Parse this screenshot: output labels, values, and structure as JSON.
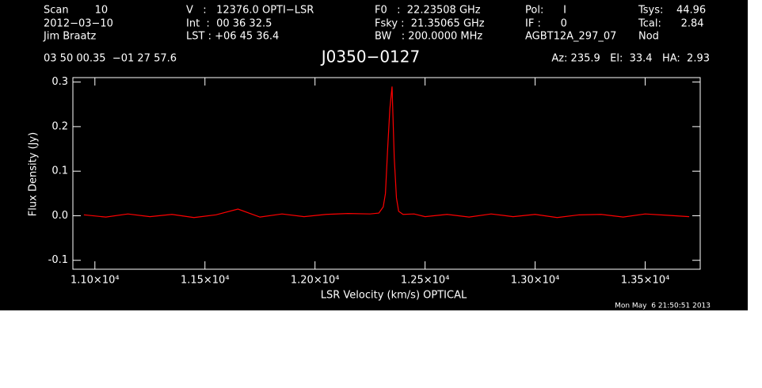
{
  "chart_data": {
    "type": "line",
    "title": "J0350−0127",
    "header": [
      [
        "Scan        10",
        "2012−03−10",
        "Jim Braatz"
      ],
      [
        "V   :   12376.0 OPTI−LSR",
        "Int  :  00 36 32.5",
        "LST : +06 45 36.4"
      ],
      [
        "F0   :  22.23508 GHz",
        "Fsky :  21.35065 GHz",
        "BW   : 200.0000 MHz"
      ],
      [
        "Pol:      I",
        "IF :      0",
        "AGBT12A_297_07"
      ],
      [
        "Tsys:    44.96",
        "Tcal:      2.84",
        "Nod"
      ]
    ],
    "coordinates": "03 50 00.35  −01 27 57.6",
    "pointing": "Az: 235.9   El:  33.4   HA:  2.93",
    "timestamp": "Mon May  6 21:50:51 2013",
    "x_label": "LSR Velocity (km/s) OPTICAL",
    "y_label": "Flux Density (Jy)",
    "xlim": [
      10900,
      13750
    ],
    "ylim": [
      -0.12,
      0.31
    ],
    "xticks": [
      {
        "value": 11000,
        "label": "1.10×10⁴"
      },
      {
        "value": 11500,
        "label": "1.15×10⁴"
      },
      {
        "value": 12000,
        "label": "1.20×10⁴"
      },
      {
        "value": 12500,
        "label": "1.25×10⁴"
      },
      {
        "value": 13000,
        "label": "1.30×10⁴"
      },
      {
        "value": 13500,
        "label": "1.35×10⁴"
      }
    ],
    "yticks": [
      -0.1,
      {
        "value": 0,
        "label": "0.0"
      },
      0.1,
      0.2,
      0.3
    ],
    "x": [
      10950,
      11050,
      11150,
      11250,
      11350,
      11450,
      11550,
      11650,
      11750,
      11850,
      11950,
      12050,
      12150,
      12250,
      12290,
      12310,
      12320,
      12330,
      12340,
      12350,
      12360,
      12370,
      12380,
      12400,
      12450,
      12500,
      12600,
      12700,
      12800,
      12900,
      13000,
      13100,
      13200,
      13300,
      13400,
      13500,
      13600,
      13700
    ],
    "series": [
      {
        "name": "Flux",
        "color": "#ff0000",
        "values": [
          0.002,
          -0.003,
          0.004,
          -0.002,
          0.003,
          -0.004,
          0.002,
          0.015,
          -0.003,
          0.004,
          -0.002,
          0.003,
          0.005,
          0.004,
          0.006,
          0.02,
          0.05,
          0.15,
          0.24,
          0.29,
          0.13,
          0.04,
          0.01,
          0.003,
          0.004,
          -0.002,
          0.003,
          -0.003,
          0.004,
          -0.002,
          0.003,
          -0.004,
          0.002,
          0.003,
          -0.003,
          0.004,
          0.001,
          -0.002
        ]
      }
    ]
  }
}
